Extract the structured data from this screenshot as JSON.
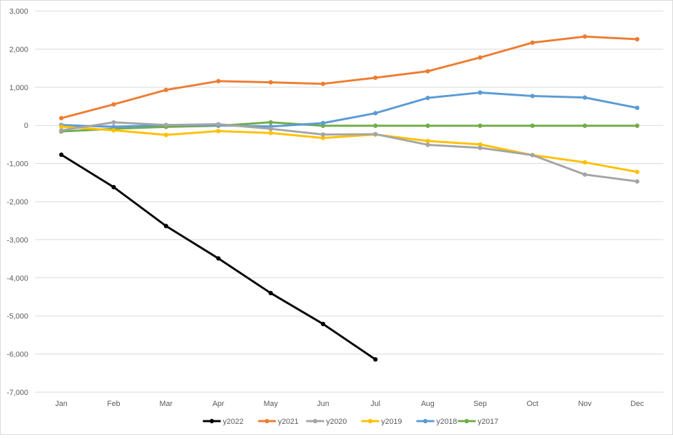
{
  "chart_data": {
    "type": "line",
    "categories": [
      "Jan",
      "Feb",
      "Mar",
      "Apr",
      "May",
      "Jun",
      "Jul",
      "Aug",
      "Sep",
      "Oct",
      "Nov",
      "Dec"
    ],
    "y_ticks": [
      "3,000",
      "2,000",
      "1,000",
      "0",
      "-1,000",
      "-2,000",
      "-3,000",
      "-4,000",
      "-5,000",
      "-6,000",
      "-7,000"
    ],
    "ylim": [
      -7000,
      3000
    ],
    "grid": true,
    "legend_position": "bottom",
    "series": [
      {
        "name": "y2022",
        "color": "#000000",
        "values": [
          -770,
          -1620,
          -2640,
          -3490,
          -4400,
          -5210,
          -6140,
          null,
          null,
          null,
          null,
          null
        ]
      },
      {
        "name": "y2021",
        "color": "#ED7D31",
        "values": [
          190,
          550,
          930,
          1160,
          1130,
          1090,
          1250,
          1420,
          1780,
          2170,
          2330,
          2260
        ]
      },
      {
        "name": "y2020",
        "color": "#A5A5A5",
        "values": [
          -130,
          80,
          10,
          30,
          -90,
          -240,
          -230,
          -510,
          -590,
          -780,
          -1290,
          -1470
        ]
      },
      {
        "name": "y2019",
        "color": "#FFC000",
        "values": [
          -30,
          -130,
          -250,
          -150,
          -200,
          -330,
          -240,
          -410,
          -500,
          -780,
          -970,
          -1220
        ]
      },
      {
        "name": "y2018",
        "color": "#5B9BD5",
        "values": [
          10,
          -40,
          10,
          0,
          -30,
          60,
          320,
          720,
          860,
          770,
          730,
          460
        ]
      },
      {
        "name": "y2017",
        "color": "#70AD47",
        "values": [
          -160,
          -90,
          -40,
          -10,
          80,
          -10,
          -10,
          -10,
          -10,
          -10,
          -10,
          -10
        ]
      }
    ]
  }
}
